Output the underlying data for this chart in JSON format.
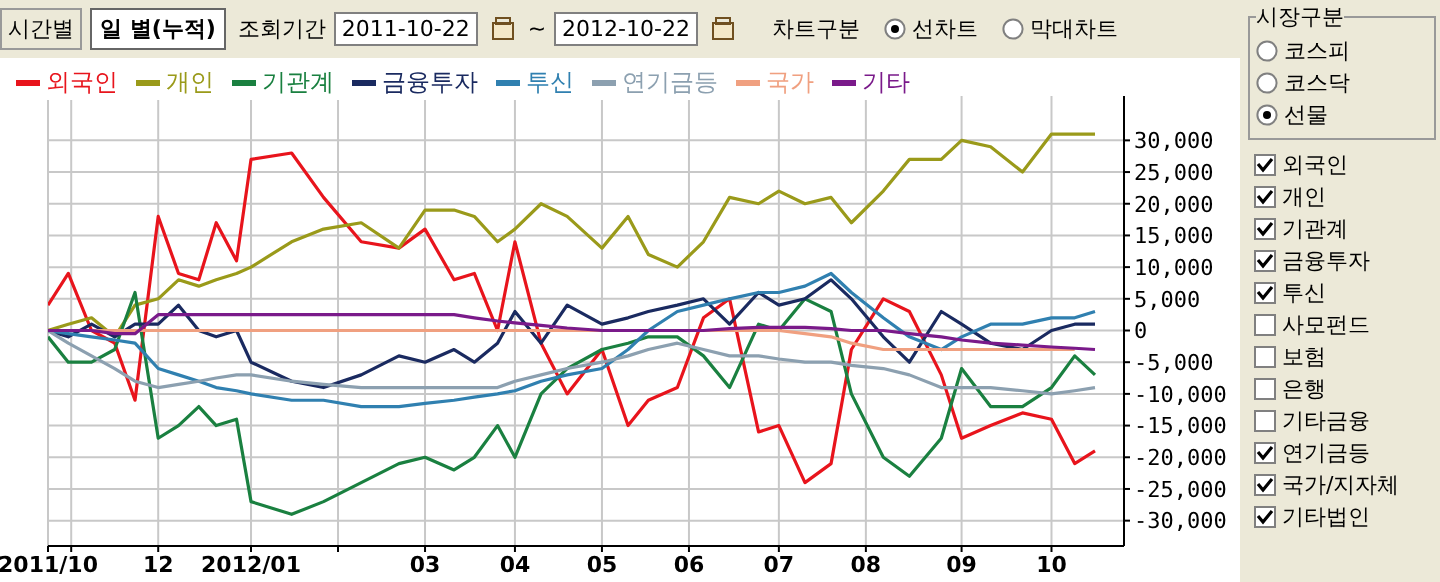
{
  "chart_data": {
    "type": "line",
    "legend": "top left",
    "grid": true,
    "marker": "none",
    "line_style": "solid",
    "annotations": [
      "시간별",
      "일 별(누적)",
      "조회기간",
      "2011-10-22",
      "~",
      "2012-10-22",
      "차트구분",
      "선차트",
      "막대차트",
      "시장구분",
      "코스피",
      "코스닥",
      "선물",
      "외국인",
      "개인",
      "기관계",
      "금융투자",
      "투신",
      "사모펀드",
      "보험",
      "은행",
      "기타금융",
      "연기금등",
      "국가/지자체",
      "기타법인"
    ],
    "x": [
      "2011-10-24",
      "2011-10-31",
      "2011-11-08",
      "2011-11-16",
      "2011-11-23",
      "2011-12-01",
      "2011-12-08",
      "2011-12-15",
      "2011-12-21",
      "2011-12-28",
      "2012-01-02",
      "2012-01-16",
      "2012-01-27",
      "2012-02-09",
      "2012-02-22",
      "2012-03-02",
      "2012-03-12",
      "2012-03-19",
      "2012-03-27",
      "2012-04-02",
      "2012-04-11",
      "2012-04-20",
      "2012-05-02",
      "2012-05-11",
      "2012-05-18",
      "2012-05-28",
      "2012-06-06",
      "2012-06-15",
      "2012-06-25",
      "2012-07-02",
      "2012-07-11",
      "2012-07-20",
      "2012-07-27",
      "2012-08-07",
      "2012-08-16",
      "2012-08-27",
      "2012-09-03",
      "2012-09-13",
      "2012-09-24",
      "2012-10-04",
      "2012-10-12",
      "2012-10-19"
    ],
    "xlim": [
      "2011-10-24",
      "2012-10-29"
    ],
    "xticks": [
      {
        "value": "2011-10-24",
        "label": "2011/10"
      },
      {
        "value": "2011-11-01",
        "label": null
      },
      {
        "value": "2011-12-01",
        "label": "12"
      },
      {
        "value": "2012-01-02",
        "label": "2012/01"
      },
      {
        "value": "2012-02-01",
        "label": null
      },
      {
        "value": "2012-03-02",
        "label": "03"
      },
      {
        "value": "2012-04-02",
        "label": "04"
      },
      {
        "value": "2012-05-02",
        "label": "05"
      },
      {
        "value": "2012-06-01",
        "label": "06"
      },
      {
        "value": "2012-07-02",
        "label": "07"
      },
      {
        "value": "2012-08-01",
        "label": "08"
      },
      {
        "value": "2012-09-03",
        "label": "09"
      },
      {
        "value": "2012-10-04",
        "label": "10"
      }
    ],
    "ylim": [
      -34000,
      37000
    ],
    "yticks": [
      {
        "value": 30000,
        "label": "30,000"
      },
      {
        "value": 25000,
        "label": "25,000"
      },
      {
        "value": 20000,
        "label": "20,000"
      },
      {
        "value": 15000,
        "label": "15,000"
      },
      {
        "value": 10000,
        "label": "10,000"
      },
      {
        "value": 5000,
        "label": "5,000"
      },
      0,
      {
        "value": -5000,
        "label": "-5,000"
      },
      {
        "value": -10000,
        "label": "-10,000"
      },
      {
        "value": -15000,
        "label": "-15,000"
      },
      {
        "value": -20000,
        "label": "-20,000"
      },
      {
        "value": -25000,
        "label": "-25,000"
      },
      {
        "value": -30000,
        "label": "-30,000"
      }
    ],
    "series": [
      {
        "name": "외국인",
        "color": "#e8141c",
        "values": [
          4000,
          9000,
          0,
          -2000,
          -11000,
          18000,
          9000,
          8000,
          17000,
          11000,
          27000,
          28000,
          21000,
          14000,
          13000,
          16000,
          8000,
          9000,
          0,
          14000,
          -2000,
          -10000,
          -3000,
          -15000,
          -11000,
          -9000,
          2000,
          5000,
          -16000,
          -15000,
          -24000,
          -21000,
          -3000,
          5000,
          3000,
          -7000,
          -17000,
          -15000,
          -13000,
          -14000,
          -21000,
          -19000
        ]
      },
      {
        "name": "개인",
        "color": "#9a9a1a",
        "values": [
          0,
          1000,
          2000,
          -1000,
          4000,
          5000,
          8000,
          7000,
          8000,
          9000,
          10000,
          14000,
          16000,
          17000,
          13000,
          19000,
          19000,
          18000,
          14000,
          16000,
          20000,
          18000,
          13000,
          18000,
          12000,
          10000,
          14000,
          21000,
          20000,
          22000,
          20000,
          21000,
          17000,
          22000,
          27000,
          27000,
          30000,
          29000,
          25000,
          31000,
          31000,
          31000
        ]
      },
      {
        "name": "기관계",
        "color": "#1a8040",
        "values": [
          -1000,
          -5000,
          -5000,
          -3000,
          6000,
          -17000,
          -15000,
          -12000,
          -15000,
          -14000,
          -27000,
          -29000,
          -27000,
          -24000,
          -21000,
          -20000,
          -22000,
          -20000,
          -15000,
          -20000,
          -10000,
          -6000,
          -3000,
          -2000,
          -1000,
          -1000,
          -4000,
          -9000,
          1000,
          0,
          5000,
          3000,
          -10000,
          -20000,
          -23000,
          -17000,
          -6000,
          -12000,
          -12000,
          -9000,
          -4000,
          -7000
        ]
      },
      {
        "name": "금융투자",
        "color": "#1a2a60",
        "values": [
          0,
          -1000,
          1000,
          -1000,
          1000,
          1000,
          4000,
          0,
          -1000,
          0,
          -5000,
          -8000,
          -9000,
          -7000,
          -4000,
          -5000,
          -3000,
          -5000,
          -2000,
          3000,
          -2000,
          4000,
          1000,
          2000,
          3000,
          4000,
          5000,
          1000,
          6000,
          4000,
          5000,
          8000,
          5000,
          -1000,
          -5000,
          3000,
          1000,
          -2000,
          -3000,
          0,
          1000,
          1000
        ]
      },
      {
        "name": "투신",
        "color": "#3080b0",
        "values": [
          0,
          -500,
          -1000,
          -1500,
          -2000,
          -6000,
          -7000,
          -8000,
          -9000,
          -9500,
          -10000,
          -11000,
          -11000,
          -12000,
          -12000,
          -11500,
          -11000,
          -10500,
          -10000,
          -9500,
          -8000,
          -7000,
          -6000,
          -3000,
          0,
          3000,
          4000,
          5000,
          6000,
          6000,
          7000,
          9000,
          6000,
          2000,
          -1000,
          -3000,
          -1000,
          1000,
          1000,
          2000,
          2000,
          3000
        ]
      },
      {
        "name": "연기금등",
        "color": "#8ca0b0",
        "values": [
          0,
          -2000,
          -4000,
          -6000,
          -8000,
          -9000,
          -8500,
          -8000,
          -7500,
          -7000,
          -7000,
          -8000,
          -8500,
          -9000,
          -9000,
          -9000,
          -9000,
          -9000,
          -9000,
          -8000,
          -7000,
          -6000,
          -5000,
          -4000,
          -3000,
          -2000,
          -3000,
          -4000,
          -4000,
          -4500,
          -5000,
          -5000,
          -5500,
          -6000,
          -7000,
          -9000,
          -9000,
          -9000,
          -9500,
          -10000,
          -9500,
          -9000
        ]
      },
      {
        "name": "국가",
        "color": "#f0a080",
        "values": [
          0,
          0,
          0,
          0,
          0,
          0,
          0,
          0,
          0,
          0,
          0,
          0,
          0,
          0,
          0,
          0,
          0,
          0,
          0,
          0,
          0,
          0,
          0,
          0,
          0,
          0,
          0,
          0,
          0,
          0,
          -500,
          -1000,
          -2000,
          -3000,
          -3000,
          -3000,
          -3000,
          -3000,
          -3000,
          -3000,
          -3000,
          null
        ]
      },
      {
        "name": "기타",
        "color": "#7a1a8a",
        "values": [
          0,
          0,
          0,
          -500,
          -500,
          2500,
          2500,
          2500,
          2500,
          2500,
          2500,
          2500,
          2500,
          2500,
          2500,
          2500,
          2500,
          2000,
          1500,
          1200,
          800,
          400,
          0,
          0,
          0,
          0,
          0,
          300,
          500,
          500,
          500,
          300,
          0,
          0,
          -500,
          -1000,
          -1500,
          -2000,
          -2300,
          -2600,
          -2800,
          -3000
        ]
      }
    ]
  }
}
